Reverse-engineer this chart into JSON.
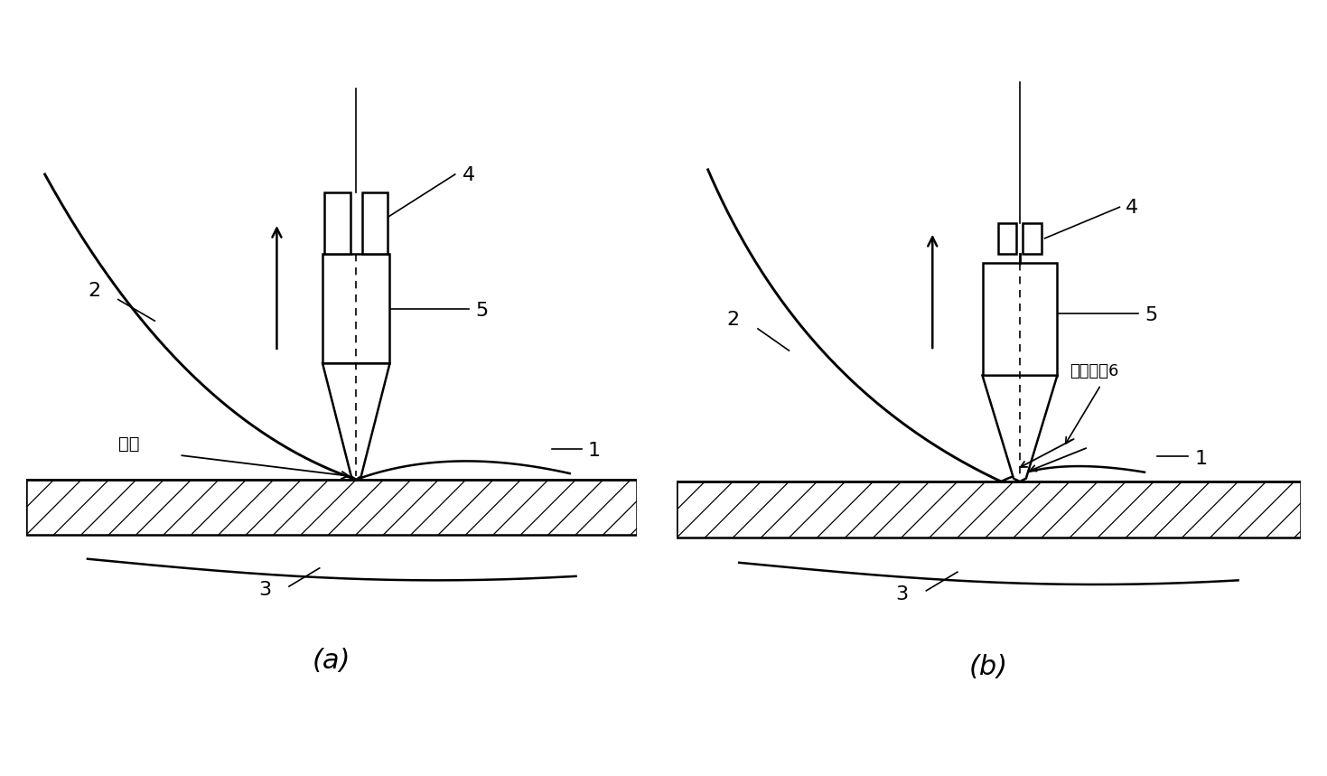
{
  "bg_color": "#ffffff",
  "line_color": "#000000",
  "label_a": "(a)",
  "label_b": "(b)",
  "labels": {
    "1a": "1",
    "2a": "2",
    "3a": "3",
    "4a": "4",
    "5a": "5",
    "qieduaN": "切断",
    "1b": "1",
    "2b": "2",
    "3b": "3",
    "4b": "4",
    "5b": "5",
    "no_tail": "没有尾选6"
  }
}
